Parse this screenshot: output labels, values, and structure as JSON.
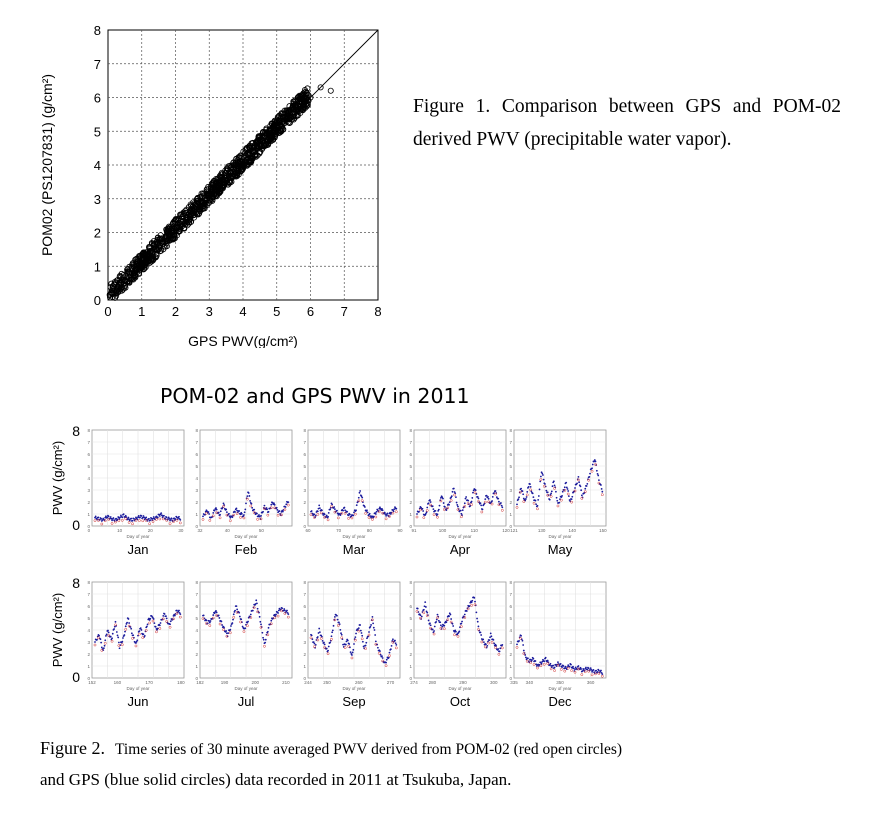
{
  "figure1": {
    "caption": "Figure 1. Comparison between GPS and POM-02 derived PWV (precipitable water vapor).",
    "xlabel": "GPS PWV(g/cm²)",
    "ylabel": "POM02 (PS1207831) (g/cm²)"
  },
  "figure2": {
    "title": "POM-02 and GPS PWV in 2011",
    "ylabel": "PWV (g/cm²)",
    "caption_label": "Figure 2.",
    "caption_text": "Time series of 30 minute averaged PWV derived from POM-02 (red open circles)",
    "caption_line2": "and GPS (blue solid circles) data recorded in 2011 at Tsukuba, Japan.",
    "panel_xlabel": "Day of year"
  },
  "chart_data": [
    {
      "type": "scatter",
      "title": "",
      "xlabel": "GPS PWV(g/cm²)",
      "ylabel": "POM02 (PS1207831) (g/cm²)",
      "xlim": [
        0,
        8
      ],
      "ylim": [
        0,
        8
      ],
      "xticks": [
        "0",
        "1",
        "2",
        "3",
        "4",
        "5",
        "6",
        "7",
        "8"
      ],
      "yticks": [
        "0",
        "1",
        "2",
        "3",
        "4",
        "5",
        "6",
        "7",
        "8"
      ],
      "grid": true,
      "reference_line": "y = x",
      "marker": "open circle",
      "point_color": "#000000",
      "points": [
        [
          0.1,
          0.2
        ],
        [
          0.3,
          0.4
        ],
        [
          0.5,
          0.6
        ],
        [
          0.8,
          0.9
        ],
        [
          1.0,
          1.1
        ],
        [
          1.3,
          1.4
        ],
        [
          1.6,
          1.7
        ],
        [
          1.9,
          2.0
        ],
        [
          2.2,
          2.2
        ],
        [
          2.5,
          2.6
        ],
        [
          2.8,
          2.9
        ],
        [
          3.1,
          3.2
        ],
        [
          3.4,
          3.5
        ],
        [
          3.7,
          3.8
        ],
        [
          4.0,
          4.1
        ],
        [
          4.3,
          4.4
        ],
        [
          4.6,
          4.7
        ],
        [
          4.9,
          5.0
        ],
        [
          5.2,
          5.3
        ],
        [
          5.5,
          5.5
        ],
        [
          5.8,
          5.8
        ],
        [
          6.0,
          6.0
        ],
        [
          6.3,
          6.3
        ],
        [
          6.6,
          6.2
        ]
      ]
    },
    {
      "type": "line",
      "title": "POM-02 and GPS PWV in 2011",
      "ylabel": "PWV (g/cm²)",
      "xlabel": "Day of year",
      "ylim": [
        0,
        8
      ],
      "series": [
        {
          "name": "POM-02",
          "color": "#d03030",
          "marker": "open circle"
        },
        {
          "name": "GPS",
          "color": "#1a1a9c",
          "marker": "solid circle"
        }
      ],
      "panels": [
        {
          "month": "Jan",
          "days": [
            1,
            31
          ],
          "ticks": [
            0,
            10,
            20,
            30
          ],
          "gps": [
            0.7,
            0.6,
            0.5,
            0.8,
            0.6,
            0.5,
            0.7,
            0.9,
            0.6,
            0.5,
            0.6,
            0.8,
            0.7,
            0.5,
            0.6,
            0.7,
            1.0,
            0.7,
            0.6,
            0.5,
            0.7,
            0.6
          ]
        },
        {
          "month": "Feb",
          "days": [
            32,
            59
          ],
          "ticks": [
            32,
            40,
            50
          ],
          "gps": [
            0.8,
            1.3,
            0.6,
            1.5,
            0.9,
            1.8,
            1.0,
            0.7,
            1.4,
            1.1,
            0.8,
            2.9,
            1.5,
            1.0,
            0.7,
            1.6,
            1.2,
            2.0,
            1.4,
            1.0,
            1.6,
            2.2
          ]
        },
        {
          "month": "Mar",
          "days": [
            60,
            90
          ],
          "ticks": [
            60,
            70,
            80,
            90
          ],
          "gps": [
            1.2,
            0.8,
            1.6,
            1.0,
            0.7,
            1.8,
            1.3,
            0.9,
            1.5,
            1.0,
            0.8,
            1.4,
            2.9,
            1.6,
            1.0,
            0.7,
            1.2,
            1.5,
            1.0,
            0.9,
            1.3,
            1.6
          ]
        },
        {
          "month": "Apr",
          "days": [
            91,
            120
          ],
          "ticks": [
            91,
            100,
            110,
            120
          ],
          "gps": [
            1.0,
            1.6,
            0.8,
            2.2,
            1.4,
            0.9,
            2.6,
            1.3,
            2.0,
            3.2,
            1.5,
            1.0,
            2.4,
            1.6,
            3.2,
            2.2,
            1.4,
            2.6,
            1.8,
            3.0,
            2.0,
            1.6
          ]
        },
        {
          "month": "May",
          "days": [
            121,
            151
          ],
          "ticks": [
            121,
            130,
            140,
            150
          ],
          "gps": [
            1.8,
            3.2,
            2.0,
            3.6,
            2.4,
            1.6,
            4.6,
            3.2,
            2.2,
            3.8,
            1.8,
            2.6,
            3.6,
            2.0,
            3.0,
            4.0,
            2.4,
            3.4,
            4.6,
            5.6,
            3.8,
            2.8
          ]
        },
        {
          "month": "Jun",
          "days": [
            152,
            181
          ],
          "ticks": [
            152,
            160,
            170,
            180
          ],
          "gps": [
            3.0,
            3.6,
            2.2,
            4.0,
            3.2,
            4.6,
            2.6,
            3.4,
            5.0,
            3.8,
            2.8,
            4.2,
            3.4,
            4.8,
            5.2,
            4.0,
            4.6,
            5.4,
            4.4,
            5.0,
            5.6,
            5.4
          ]
        },
        {
          "month": "Jul",
          "days": [
            182,
            212
          ],
          "ticks": [
            182,
            190,
            200,
            210
          ],
          "gps": [
            5.2,
            4.6,
            4.8,
            5.6,
            5.0,
            4.2,
            3.6,
            4.4,
            6.0,
            5.2,
            4.0,
            4.8,
            5.6,
            6.4,
            4.8,
            2.8,
            4.2,
            5.0,
            5.4,
            5.8,
            5.6,
            5.4
          ]
        },
        {
          "month": "Sep",
          "days": [
            244,
            273
          ],
          "ticks": [
            244,
            250,
            260,
            270
          ],
          "gps": [
            3.6,
            2.6,
            4.0,
            3.0,
            2.2,
            3.4,
            5.4,
            4.4,
            2.6,
            3.2,
            1.8,
            3.8,
            4.4,
            2.4,
            3.6,
            5.0,
            2.8,
            2.0,
            1.2,
            1.8,
            3.2,
            2.8
          ]
        },
        {
          "month": "Oct",
          "days": [
            274,
            304
          ],
          "ticks": [
            274,
            280,
            290,
            300
          ],
          "gps": [
            5.8,
            5.0,
            6.2,
            4.6,
            3.8,
            5.2,
            4.2,
            4.6,
            5.4,
            4.0,
            3.6,
            4.8,
            5.6,
            6.2,
            6.8,
            4.2,
            3.2,
            2.6,
            3.6,
            2.8,
            2.2,
            3.0
          ]
        },
        {
          "month": "Dec",
          "days": [
            335,
            365
          ],
          "ticks": [
            335,
            340,
            350,
            360
          ],
          "gps": [
            2.8,
            3.6,
            1.8,
            1.4,
            1.6,
            1.0,
            1.3,
            1.6,
            1.1,
            0.9,
            1.2,
            1.0,
            0.8,
            1.1,
            0.7,
            0.9,
            0.6,
            0.8,
            0.7,
            0.5,
            0.6,
            0.4
          ]
        }
      ]
    }
  ]
}
